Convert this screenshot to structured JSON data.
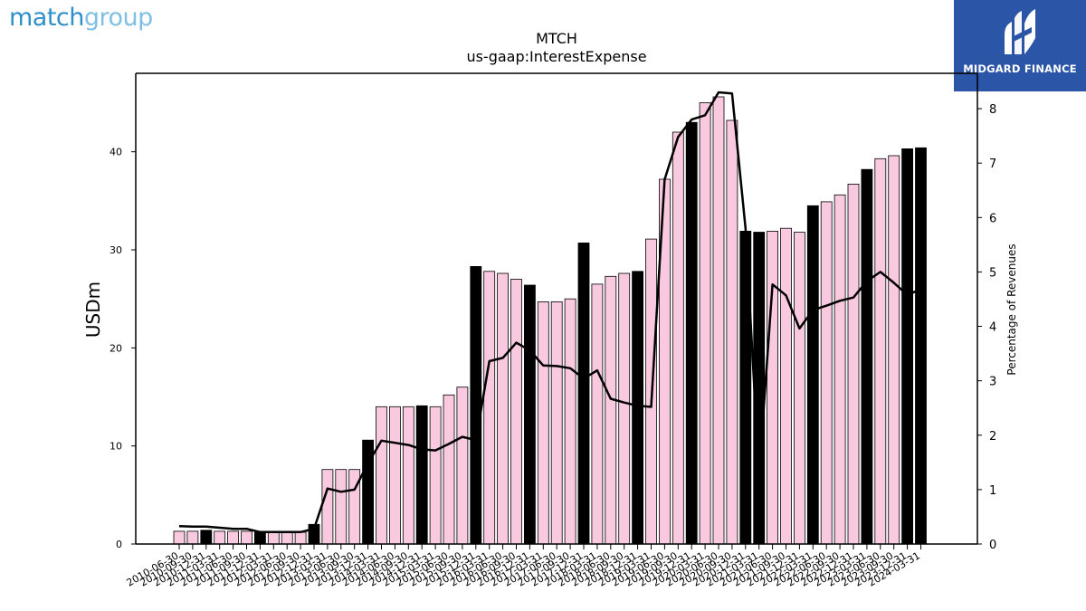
{
  "header": {
    "logo_left_part1": "match",
    "logo_left_part2": "group",
    "logo_right_text": "MIDGARD FINANCE"
  },
  "chart_data": {
    "type": "bar",
    "title": "MTCH",
    "subtitle": "us-gaap:InterestExpense",
    "ylabel": "USDm",
    "y2label": "Percentage of Revenues",
    "ylim": [
      0,
      48
    ],
    "y2lim": [
      0,
      8.65
    ],
    "yticks": [
      0,
      10,
      20,
      30,
      40
    ],
    "y2ticks": [
      0,
      1,
      2,
      3,
      4,
      5,
      6,
      7,
      8
    ],
    "colors": {
      "bar": "#f9c9e0",
      "bar_highlight": "#000000",
      "line": "#000000"
    },
    "categories": [
      "2010-06-30",
      "2010-09-30",
      "2010-12-31",
      "2011-03-31",
      "2011-06-30",
      "2011-09-30",
      "2011-12-31",
      "2012-03-31",
      "2012-06-30",
      "2012-09-30",
      "2012-12-31",
      "2013-03-31",
      "2013-06-30",
      "2013-09-30",
      "2013-12-31",
      "2014-03-31",
      "2014-06-30",
      "2014-09-30",
      "2014-12-31",
      "2015-03-31",
      "2015-06-30",
      "2015-09-30",
      "2015-12-31",
      "2016-03-31",
      "2016-06-30",
      "2016-09-30",
      "2016-12-31",
      "2017-03-31",
      "2017-06-30",
      "2017-09-30",
      "2017-12-31",
      "2018-03-31",
      "2018-06-30",
      "2018-09-30",
      "2018-12-31",
      "2019-03-31",
      "2019-06-30",
      "2019-09-30",
      "2019-12-31",
      "2020-03-31",
      "2020-06-30",
      "2020-09-30",
      "2020-12-31",
      "2021-03-31",
      "2021-06-30",
      "2021-09-30",
      "2021-12-31",
      "2022-03-31",
      "2022-06-30",
      "2022-09-30",
      "2022-12-31",
      "2023-03-31",
      "2023-06-30",
      "2023-09-30",
      "2023-12-31",
      "2024-03-31"
    ],
    "series": [
      {
        "kind": "bar",
        "values": [
          1.3,
          1.3,
          1.4,
          1.3,
          1.3,
          1.3,
          1.2,
          1.2,
          1.2,
          1.2,
          2.0,
          7.6,
          7.6,
          7.6,
          10.6,
          14.0,
          14.0,
          14.0,
          14.1,
          14.0,
          15.2,
          16.0,
          28.3,
          27.8,
          27.6,
          27.0,
          26.4,
          24.7,
          24.7,
          25.0,
          30.7,
          26.5,
          27.3,
          27.6,
          27.8,
          31.1,
          37.2,
          42.0,
          43.0,
          45.0,
          45.6,
          43.2,
          31.9,
          31.8,
          31.9,
          32.2,
          31.8,
          34.5,
          34.9,
          35.6,
          36.7,
          38.2,
          39.3,
          39.6,
          40.3,
          40.4
        ],
        "highlighted": [
          false,
          false,
          true,
          false,
          false,
          false,
          true,
          false,
          false,
          false,
          true,
          false,
          false,
          false,
          true,
          false,
          false,
          false,
          true,
          false,
          false,
          false,
          true,
          false,
          false,
          false,
          true,
          false,
          false,
          false,
          true,
          false,
          false,
          false,
          true,
          false,
          false,
          false,
          true,
          false,
          false,
          false,
          true,
          true,
          false,
          false,
          false,
          true,
          false,
          false,
          false,
          true,
          false,
          false,
          true,
          true
        ]
      },
      {
        "kind": "line",
        "axis": "right",
        "values": [
          0.33,
          0.32,
          0.32,
          0.3,
          0.28,
          0.28,
          0.22,
          0.22,
          0.22,
          0.22,
          0.28,
          1.02,
          0.96,
          1.0,
          1.48,
          1.9,
          1.86,
          1.82,
          1.74,
          1.72,
          1.84,
          1.97,
          1.91,
          3.36,
          3.42,
          3.7,
          3.56,
          3.28,
          3.27,
          3.23,
          3.04,
          3.19,
          2.67,
          2.6,
          2.54,
          2.52,
          6.7,
          7.48,
          7.8,
          7.88,
          8.3,
          8.28,
          5.8,
          1.28,
          4.77,
          4.57,
          3.96,
          4.3,
          4.38,
          4.47,
          4.53,
          4.83,
          5.0,
          4.8,
          4.58,
          4.68
        ]
      }
    ]
  }
}
